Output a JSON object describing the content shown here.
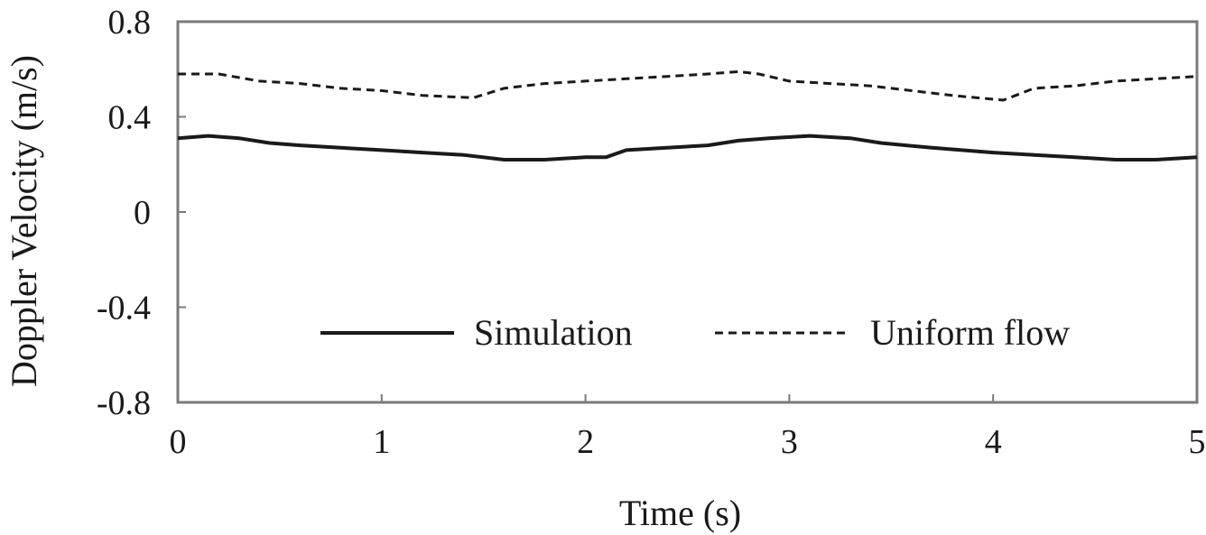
{
  "chart_data": {
    "type": "line",
    "xlabel": "Time (s)",
    "ylabel": "Doppler Velocity (m/s)",
    "xlim": [
      0,
      5
    ],
    "ylim": [
      -0.8,
      0.8
    ],
    "xticks": [
      0,
      1,
      2,
      3,
      4,
      5
    ],
    "yticks": [
      0.8,
      0.4,
      0,
      -0.4,
      -0.8
    ],
    "xtick_labels": [
      "0",
      "1",
      "2",
      "3",
      "4",
      "5"
    ],
    "ytick_labels": [
      "0.8",
      "0.4",
      "0",
      "-0.4",
      "-0.8"
    ],
    "grid": false,
    "legend_position": "lower-right",
    "series": [
      {
        "name": "Simulation",
        "line_style": "solid",
        "color": "#1a1a1a",
        "x": [
          0,
          0.15,
          0.3,
          0.45,
          0.6,
          0.8,
          1.0,
          1.2,
          1.4,
          1.6,
          1.8,
          2.0,
          2.1,
          2.2,
          2.4,
          2.6,
          2.75,
          2.9,
          3.1,
          3.3,
          3.45,
          3.7,
          4.0,
          4.2,
          4.4,
          4.6,
          4.8,
          5.0
        ],
        "y": [
          0.31,
          0.32,
          0.31,
          0.29,
          0.28,
          0.27,
          0.26,
          0.25,
          0.24,
          0.22,
          0.22,
          0.23,
          0.23,
          0.26,
          0.27,
          0.28,
          0.3,
          0.31,
          0.32,
          0.31,
          0.29,
          0.27,
          0.25,
          0.24,
          0.23,
          0.22,
          0.22,
          0.23
        ]
      },
      {
        "name": "Uniform flow",
        "line_style": "dashed",
        "color": "#1a1a1a",
        "x": [
          0,
          0.2,
          0.4,
          0.6,
          0.8,
          1.0,
          1.2,
          1.45,
          1.6,
          1.8,
          2.0,
          2.2,
          2.4,
          2.6,
          2.75,
          2.85,
          3.0,
          3.2,
          3.4,
          3.6,
          3.8,
          4.05,
          4.2,
          4.4,
          4.6,
          4.8,
          5.0
        ],
        "y": [
          0.58,
          0.58,
          0.55,
          0.54,
          0.52,
          0.51,
          0.49,
          0.48,
          0.52,
          0.54,
          0.55,
          0.56,
          0.57,
          0.58,
          0.59,
          0.58,
          0.55,
          0.54,
          0.53,
          0.51,
          0.49,
          0.47,
          0.52,
          0.53,
          0.55,
          0.56,
          0.57
        ]
      }
    ]
  }
}
